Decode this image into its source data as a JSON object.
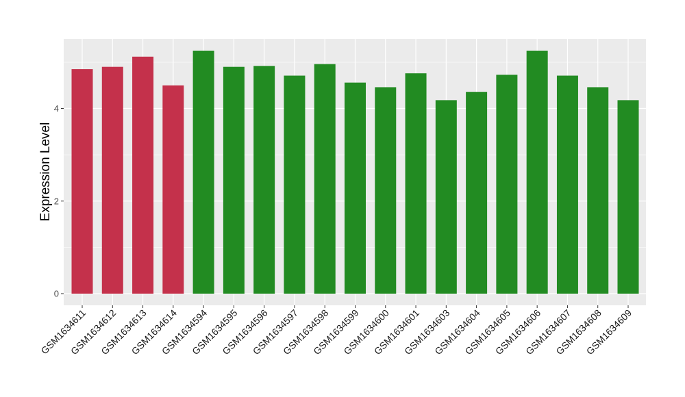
{
  "chart_data": {
    "type": "bar",
    "title": "",
    "xlabel": "",
    "ylabel": "Expression Level",
    "ylim": [
      0,
      5.25
    ],
    "yticks": [
      0,
      2,
      4
    ],
    "grid": true,
    "categories": [
      "GSM1634611",
      "GSM1634612",
      "GSM1634613",
      "GSM1634614",
      "GSM1634594",
      "GSM1634595",
      "GSM1634596",
      "GSM1634597",
      "GSM1634598",
      "GSM1634599",
      "GSM1634600",
      "GSM1634601",
      "GSM1634603",
      "GSM1634604",
      "GSM1634605",
      "GSM1634606",
      "GSM1634607",
      "GSM1634608",
      "GSM1634609"
    ],
    "values": [
      4.85,
      4.9,
      5.12,
      4.5,
      5.25,
      4.9,
      4.92,
      4.71,
      4.96,
      4.56,
      4.46,
      4.76,
      4.18,
      4.36,
      4.73,
      5.25,
      4.71,
      4.46,
      4.18
    ],
    "bar_colors": [
      "#c4314b",
      "#c4314b",
      "#c4314b",
      "#c4314b",
      "#228b22",
      "#228b22",
      "#228b22",
      "#228b22",
      "#228b22",
      "#228b22",
      "#228b22",
      "#228b22",
      "#228b22",
      "#228b22",
      "#228b22",
      "#228b22",
      "#228b22",
      "#228b22",
      "#228b22"
    ],
    "panel_background": "#ebebeb",
    "grid_color": "#ffffff"
  }
}
